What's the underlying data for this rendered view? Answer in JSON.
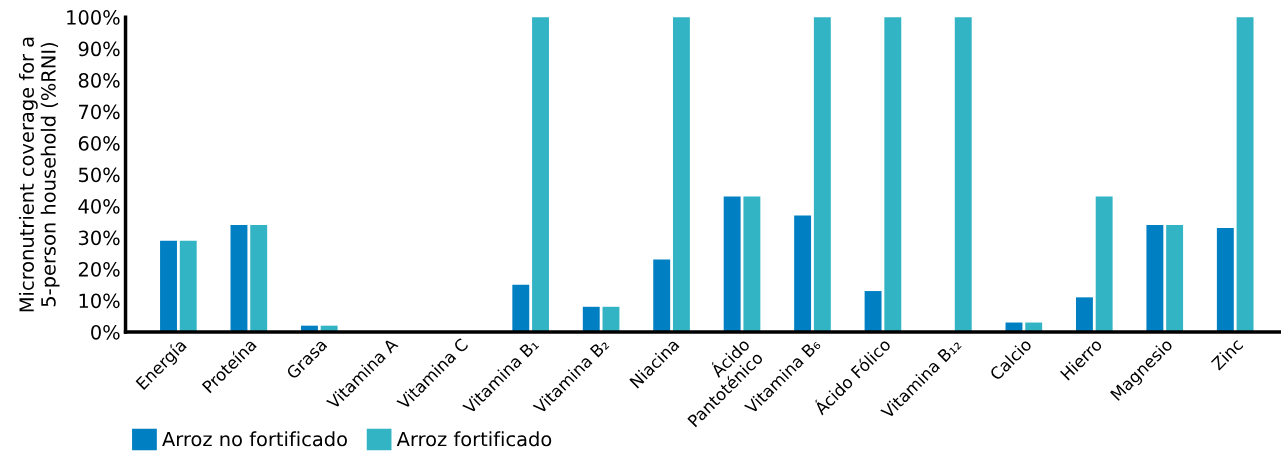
{
  "chart_data": {
    "type": "bar",
    "ylabel": "Micronutrient coverage for a\n5-person household (%RNI)",
    "categories": [
      "Energía",
      "Proteína",
      "Grasa",
      "Vitamina A",
      "Vitamina C",
      "Vitamina B₁",
      "Vitamina B₂",
      "Niacina",
      "Ácido\nPantoténico",
      "Vitamina B₆",
      "Ácido Fólico",
      "Vitamina B₁₂",
      "Calcio",
      "Hierro",
      "Magnesio",
      "Zinc"
    ],
    "series": [
      {
        "name": "Arroz no fortificado",
        "color": "#0080c2",
        "values": [
          29,
          34,
          2,
          0,
          0,
          15,
          8,
          23,
          43,
          37,
          13,
          0,
          3,
          11,
          34,
          33
        ]
      },
      {
        "name": "Arroz fortificado",
        "color": "#33b4c4",
        "values": [
          29,
          34,
          2,
          0,
          0,
          100,
          8,
          100,
          43,
          100,
          100,
          100,
          3,
          43,
          34,
          100
        ]
      }
    ],
    "ylim": [
      0,
      100
    ],
    "yticks": [
      {
        "value": 0,
        "label": "0%"
      },
      {
        "value": 10,
        "label": "10%"
      },
      {
        "value": 20,
        "label": "20%"
      },
      {
        "value": 30,
        "label": "30%"
      },
      {
        "value": 40,
        "label": "40%"
      },
      {
        "value": 50,
        "label": "50%"
      },
      {
        "value": 60,
        "label": "60%"
      },
      {
        "value": 70,
        "label": "70%"
      },
      {
        "value": 80,
        "label": "80%"
      },
      {
        "value": 90,
        "label": "90%"
      },
      {
        "value": 100,
        "label": "100%"
      }
    ],
    "grid": false,
    "legend": "bottom left"
  }
}
